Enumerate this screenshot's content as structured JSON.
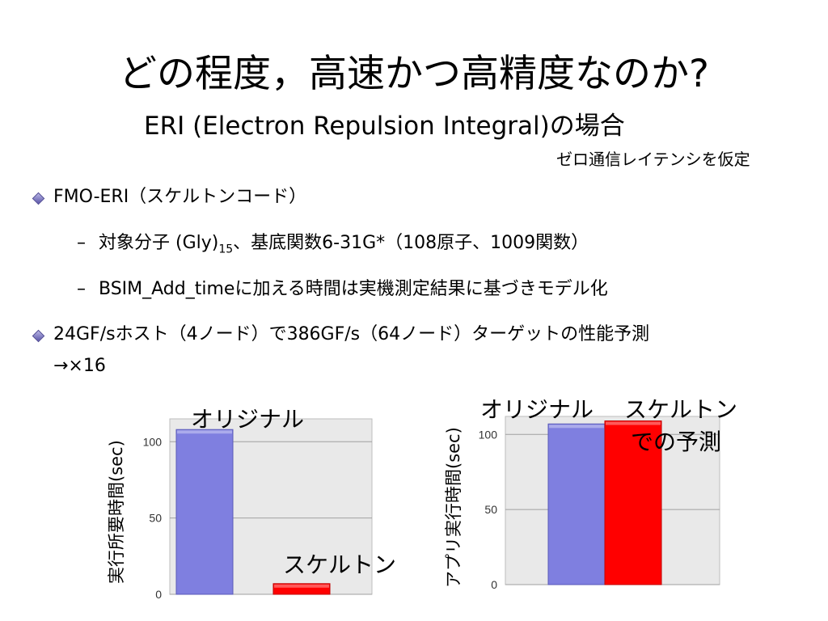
{
  "slide": {
    "title": "どの程度，高速かつ高精度なのか?",
    "subtitle": "ERI (Electron Repulsion Integral)の場合",
    "note": "ゼロ通信レイテンシを仮定"
  },
  "bullets": {
    "b1": "FMO-ERI（スケルトンコード）",
    "b1_sub1_pre": "対象分子 (Gly)",
    "b1_sub1_sub": "15",
    "b1_sub1_post": "、基底関数6-31G*（108原子、1009関数）",
    "b1_sub2": "BSIM_Add_timeに加える時間は実機測定結果に基づきモデル化",
    "b2_line1": "24GF/sホスト（4ノード）で386GF/s（64ノード）ターゲットの性能予測",
    "b2_line2": "→×16",
    "dash": "–"
  },
  "chart_data": [
    {
      "type": "bar",
      "categories": [
        "オリジナル",
        "スケルトン"
      ],
      "values": [
        108,
        7
      ],
      "ylabel": "実行所要時間(sec)",
      "ylim": [
        0,
        115
      ],
      "yticks": [
        0,
        50,
        100
      ],
      "colors": [
        "#7f7fe0",
        "#ff0000"
      ],
      "grid": true
    },
    {
      "type": "bar",
      "categories": [
        "オリジナル",
        "スケルトンでの予測"
      ],
      "category_labels": [
        "オリジナル",
        "スケルトン",
        "での予測"
      ],
      "values": [
        107,
        109
      ],
      "ylabel": "アプリ実行時間(sec)",
      "ylim": [
        0,
        112
      ],
      "yticks": [
        0,
        50,
        100
      ],
      "colors": [
        "#7f7fe0",
        "#ff0000"
      ],
      "grid": true
    }
  ]
}
